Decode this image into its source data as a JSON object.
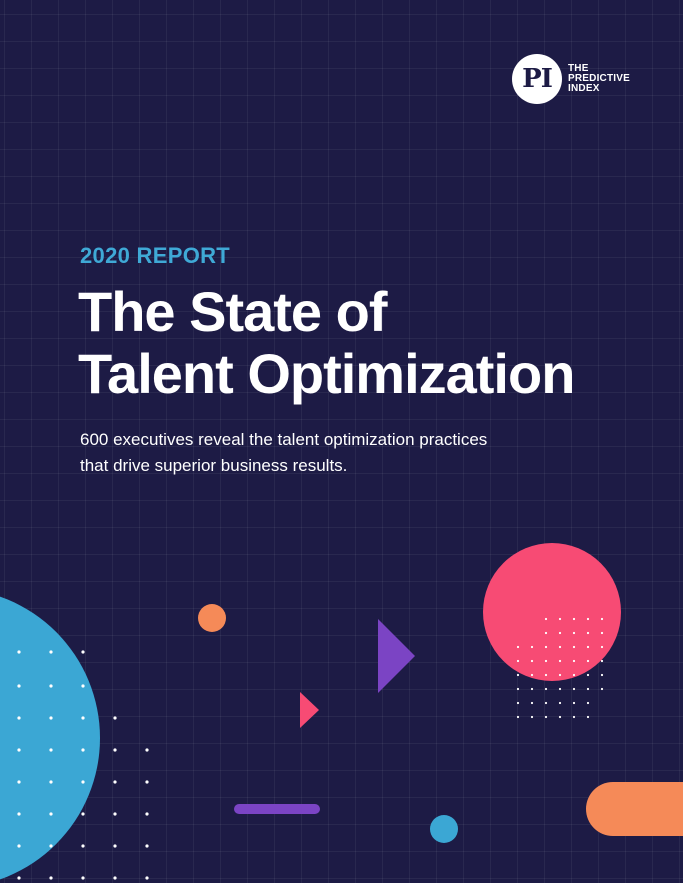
{
  "logo": {
    "mark": "PI",
    "line1": "THE",
    "line2": "PREDICTIVE",
    "line3": "INDEX"
  },
  "eyebrow": "2020 REPORT",
  "title": {
    "line1": "The State of",
    "line2": "Talent Optimization"
  },
  "subtitle": {
    "line1": "600 executives reveal the talent optimization practices",
    "line2": "that drive superior business results."
  },
  "colors": {
    "background": "#1d1b45",
    "accent_blue": "#3ba7d4",
    "accent_pink": "#f74b74",
    "accent_orange": "#f58a58",
    "accent_purple": "#7b44c4"
  }
}
